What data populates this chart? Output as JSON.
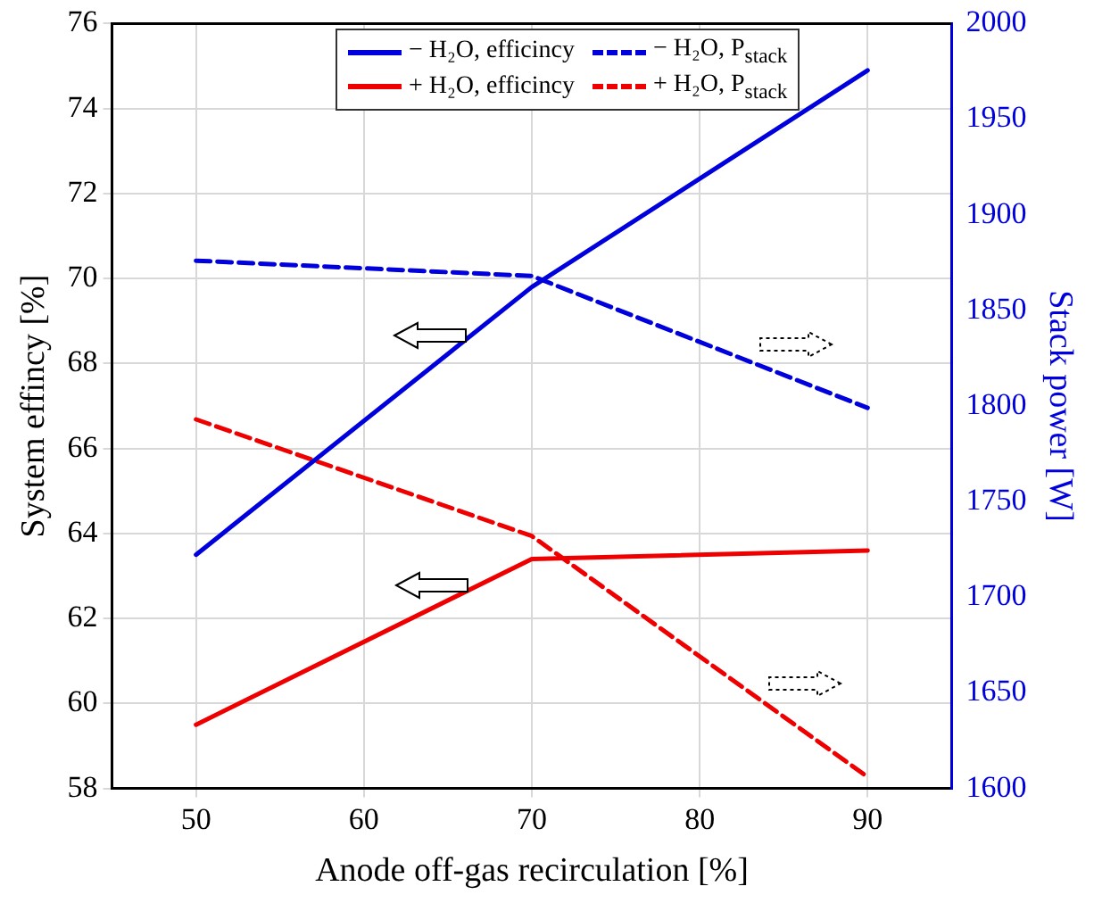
{
  "chart_data": {
    "type": "line",
    "xlabel": "Anode off-gas recirculation [%]",
    "ylabel": "System effincy [%]",
    "y2label": "Stack power [W]",
    "x": [
      50,
      70,
      90
    ],
    "xlim": [
      45,
      95
    ],
    "xticks": [
      50,
      60,
      70,
      80,
      90
    ],
    "ylim": [
      58,
      76
    ],
    "yticks": [
      58,
      60,
      62,
      64,
      66,
      68,
      70,
      72,
      74,
      76
    ],
    "y2lim": [
      1600,
      2000
    ],
    "y2ticks": [
      1600,
      1650,
      1700,
      1750,
      1800,
      1850,
      1900,
      1950,
      2000
    ],
    "grid": true,
    "legend": "top",
    "marker": "none",
    "series": [
      {
        "name": "− H₂O, efficincy",
        "color": "#0000dd",
        "values": [
          63.5,
          69.8,
          74.9
        ],
        "line_style": "solid"
      },
      {
        "name": "− H₂O, P$_{stack}$",
        "color": "#0000dd",
        "values": [
          1876,
          1868,
          1799
        ],
        "line_style": "dashed",
        "axis": "y2"
      },
      {
        "name": "+ H₂O, efficincy",
        "color": "#ee0000",
        "values": [
          59.5,
          63.4,
          63.6
        ],
        "line_style": "solid"
      },
      {
        "name": "+ H₂O, P$_{stack}$",
        "color": "#ee0000",
        "values": [
          1793,
          1732,
          1606
        ],
        "line_style": "dashed",
        "axis": "y2"
      }
    ]
  }
}
